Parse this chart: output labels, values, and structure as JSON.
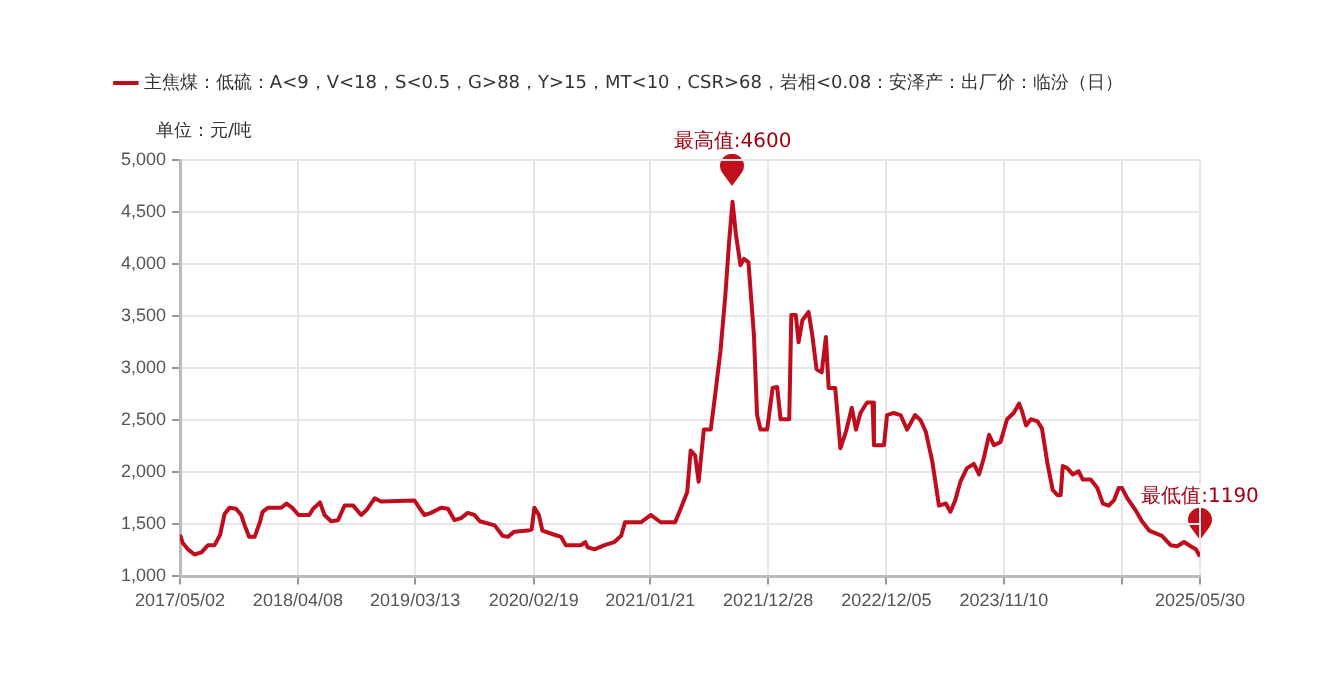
{
  "chart_data": {
    "type": "line",
    "ylabel": "单位：元/吨",
    "legend": "top",
    "grid": true,
    "marker": "none",
    "xlim": [
      "2017-05-02",
      "2025-05-30"
    ],
    "xticks": [
      {
        "value": "2017-05-02",
        "label": "2017/05/02"
      },
      {
        "value": "2018-04-08",
        "label": "2018/04/08"
      },
      {
        "value": "2019-03-13",
        "label": "2019/03/13"
      },
      {
        "value": "2020-02-19",
        "label": "2020/02/19"
      },
      {
        "value": "2021-01-21",
        "label": "2021/01/21"
      },
      {
        "value": "2021-12-28",
        "label": "2021/12/28"
      },
      {
        "value": "2022-12-05",
        "label": "2022/12/05"
      },
      {
        "value": "2023-11-10",
        "label": "2023/11/10"
      },
      {
        "value": "2024-10-17",
        "label": null
      },
      {
        "value": "2025-05-30",
        "label": "2025/05/30"
      }
    ],
    "ylim": [
      1000,
      5000
    ],
    "yticks": [
      {
        "value": 1000,
        "label": "1,000"
      },
      {
        "value": 1500,
        "label": "1,500"
      },
      {
        "value": 2000,
        "label": "2,000"
      },
      {
        "value": 2500,
        "label": "2,500"
      },
      {
        "value": 3000,
        "label": "3,000"
      },
      {
        "value": 3500,
        "label": "3,500"
      },
      {
        "value": 4000,
        "label": "4,000"
      },
      {
        "value": 4500,
        "label": "4,500"
      },
      {
        "value": 5000,
        "label": "5,000"
      }
    ],
    "annotations": [
      {
        "text": "最高值:4600",
        "x": "2021-09-16",
        "y": 4600
      },
      {
        "text": "最低值:1190",
        "x": "2025-05-30",
        "y": 1190
      }
    ],
    "series": [
      {
        "name": "主焦煤：低硫：A<9，V<18，S<0.5，G>88，Y>15，MT<10，CSR>68，岩相<0.08：安泽产：出厂价：临汾（日）",
        "color": "#c00d1e",
        "x": [
          "2017-05-02",
          "2017-05-10",
          "2017-05-25",
          "2017-06-13",
          "2017-07-03",
          "2017-07-22",
          "2017-08-10",
          "2017-08-26",
          "2017-09-08",
          "2017-09-22",
          "2017-10-11",
          "2017-10-26",
          "2017-11-05",
          "2017-11-18",
          "2017-12-04",
          "2017-12-19",
          "2017-12-27",
          "2018-01-11",
          "2018-02-19",
          "2018-03-06",
          "2018-03-22",
          "2018-04-10",
          "2018-05-11",
          "2018-05-22",
          "2018-06-11",
          "2018-06-24",
          "2018-07-13",
          "2018-08-02",
          "2018-08-21",
          "2018-09-15",
          "2018-10-08",
          "2018-10-24",
          "2018-11-16",
          "2018-12-05",
          "2019-03-11",
          "2019-03-27",
          "2019-04-09",
          "2019-04-28",
          "2019-05-27",
          "2019-06-16",
          "2019-07-05",
          "2019-07-24",
          "2019-08-12",
          "2019-09-01",
          "2019-09-16",
          "2019-10-29",
          "2019-11-21",
          "2019-12-06",
          "2019-12-25",
          "2020-02-02",
          "2020-02-13",
          "2020-02-21",
          "2020-03-05",
          "2020-03-15",
          "2020-04-19",
          "2020-05-08",
          "2020-05-22",
          "2020-06-16",
          "2020-07-05",
          "2020-07-17",
          "2020-07-24",
          "2020-08-13",
          "2020-09-11",
          "2020-10-09",
          "2020-10-29",
          "2020-11-09",
          "2020-12-25",
          "2021-01-23",
          "2021-02-20",
          "2021-04-03",
          "2021-04-19",
          "2021-05-08",
          "2021-05-18",
          "2021-05-31",
          "2021-06-10",
          "2021-06-25",
          "2021-07-15",
          "2021-07-28",
          "2021-08-12",
          "2021-08-26",
          "2021-09-06",
          "2021-09-16",
          "2021-09-26",
          "2021-10-09",
          "2021-10-19",
          "2021-11-01",
          "2021-11-17",
          "2021-11-26",
          "2021-12-06",
          "2021-12-25",
          "2022-01-10",
          "2022-01-23",
          "2022-02-02",
          "2022-02-27",
          "2022-03-05",
          "2022-03-18",
          "2022-03-26",
          "2022-04-06",
          "2022-04-24",
          "2022-05-05",
          "2022-05-17",
          "2022-06-01",
          "2022-06-13",
          "2022-06-21",
          "2022-07-10",
          "2022-07-25",
          "2022-08-10",
          "2022-08-27",
          "2022-09-08",
          "2022-09-21",
          "2022-10-10",
          "2022-10-26",
          "2022-10-30",
          "2022-11-28",
          "2022-12-07",
          "2022-12-26",
          "2023-01-15",
          "2023-02-03",
          "2023-02-26",
          "2023-03-14",
          "2023-03-29",
          "2023-04-17",
          "2023-05-06",
          "2023-05-26",
          "2023-06-08",
          "2023-06-22",
          "2023-07-07",
          "2023-07-26",
          "2023-08-15",
          "2023-08-30",
          "2023-09-13",
          "2023-09-28",
          "2023-10-12",
          "2023-10-31",
          "2023-11-19",
          "2023-12-08",
          "2023-12-24",
          "2024-01-01",
          "2024-01-13",
          "2024-01-27",
          "2024-02-15",
          "2024-02-28",
          "2024-03-15",
          "2024-03-30",
          "2024-04-13",
          "2024-04-22",
          "2024-04-28",
          "2024-05-11",
          "2024-05-27",
          "2024-06-13",
          "2024-06-25",
          "2024-07-18",
          "2024-08-06",
          "2024-08-22",
          "2024-09-08",
          "2024-09-23",
          "2024-10-07",
          "2024-10-16",
          "2024-11-01",
          "2024-11-24",
          "2024-12-13",
          "2025-01-03",
          "2025-01-17",
          "2025-02-09",
          "2025-03-06",
          "2025-03-25",
          "2025-04-14",
          "2025-05-03",
          "2025-05-18",
          "2025-05-30"
        ],
        "values": [
          1400,
          1320,
          1260,
          1210,
          1230,
          1300,
          1300,
          1400,
          1600,
          1660,
          1650,
          1590,
          1490,
          1380,
          1380,
          1520,
          1620,
          1660,
          1660,
          1700,
          1660,
          1590,
          1590,
          1650,
          1710,
          1590,
          1530,
          1540,
          1680,
          1680,
          1590,
          1640,
          1750,
          1720,
          1730,
          1650,
          1590,
          1610,
          1660,
          1650,
          1540,
          1560,
          1610,
          1590,
          1530,
          1490,
          1390,
          1380,
          1430,
          1440,
          1450,
          1660,
          1590,
          1440,
          1400,
          1380,
          1300,
          1300,
          1300,
          1330,
          1280,
          1260,
          1300,
          1330,
          1390,
          1520,
          1520,
          1590,
          1520,
          1520,
          1650,
          1810,
          2210,
          2160,
          1910,
          2410,
          2410,
          2750,
          3160,
          3690,
          4210,
          4600,
          4280,
          3990,
          4050,
          4020,
          3310,
          2550,
          2410,
          2410,
          2810,
          2820,
          2510,
          2510,
          3510,
          3510,
          3250,
          3460,
          3540,
          3310,
          2990,
          2960,
          3300,
          2810,
          2810,
          2230,
          2390,
          2620,
          2410,
          2570,
          2670,
          2670,
          2260,
          2260,
          2550,
          2570,
          2550,
          2410,
          2550,
          2500,
          2390,
          2100,
          1680,
          1700,
          1620,
          1730,
          1910,
          2040,
          2080,
          1980,
          2140,
          2360,
          2260,
          2290,
          2510,
          2570,
          2660,
          2590,
          2450,
          2510,
          2490,
          2420,
          2080,
          1830,
          1780,
          1780,
          2060,
          2040,
          1980,
          2010,
          1930,
          1930,
          1850,
          1700,
          1680,
          1730,
          1850,
          1850,
          1750,
          1640,
          1530,
          1440,
          1420,
          1390,
          1300,
          1290,
          1330,
          1290,
          1260,
          1190
        ]
      }
    ]
  }
}
